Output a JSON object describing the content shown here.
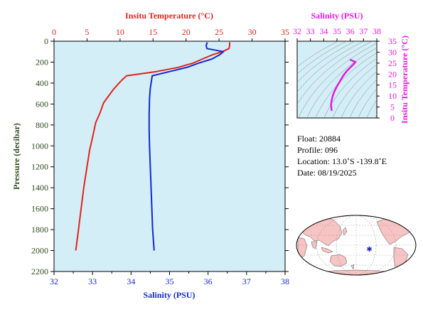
{
  "colors": {
    "plot_bg": "#d3eef6",
    "temperature": "#e3231e",
    "salinity": "#1428d2",
    "ts_curve": "#e419e4",
    "pressure_axis": "#2e4a1c",
    "land": "#f7c3c3",
    "ocean": "#ffffff",
    "float_marker": "#1a28c8"
  },
  "chart_data": [
    {
      "type": "line",
      "title": "",
      "top_axis": {
        "label": "Insitu Temperature (°C)",
        "range": [
          0,
          35
        ],
        "ticks": [
          "0",
          "5",
          "10",
          "15",
          "20",
          "25",
          "30",
          "35"
        ]
      },
      "bottom_axis": {
        "label": "Salinity (PSU)",
        "range": [
          32,
          38
        ],
        "ticks": [
          "32",
          "33",
          "34",
          "35",
          "36",
          "37",
          "38"
        ]
      },
      "left_axis": {
        "label": "Pressure (decibar)",
        "range": [
          0,
          2200
        ],
        "inverted": true,
        "ticks": [
          "0",
          "200",
          "400",
          "600",
          "800",
          "1000",
          "1200",
          "1400",
          "1600",
          "1800",
          "2000",
          "2200"
        ]
      },
      "grid": false,
      "series": [
        {
          "name": "",
          "quantity": "temperature",
          "axis": "top",
          "points": [
            [
              26.6,
              10
            ],
            [
              26.6,
              40
            ],
            [
              26.5,
              70
            ],
            [
              25.5,
              100
            ],
            [
              24.0,
              130
            ],
            [
              22.5,
              170
            ],
            [
              21.0,
              210
            ],
            [
              18.8,
              250
            ],
            [
              15.5,
              290
            ],
            [
              11.0,
              330
            ],
            [
              10.3,
              370
            ],
            [
              9.7,
              410
            ],
            [
              9.0,
              460
            ],
            [
              8.3,
              520
            ],
            [
              7.5,
              590
            ],
            [
              7.0,
              680
            ],
            [
              6.3,
              780
            ],
            [
              5.9,
              900
            ],
            [
              5.4,
              1040
            ],
            [
              5.0,
              1200
            ],
            [
              4.5,
              1400
            ],
            [
              4.1,
              1600
            ],
            [
              3.7,
              1800
            ],
            [
              3.3,
              2000
            ]
          ]
        },
        {
          "name": "",
          "quantity": "salinity",
          "axis": "bottom",
          "points": [
            [
              35.98,
              10
            ],
            [
              35.95,
              40
            ],
            [
              35.97,
              70
            ],
            [
              36.4,
              100
            ],
            [
              36.3,
              130
            ],
            [
              36.1,
              170
            ],
            [
              35.75,
              210
            ],
            [
              35.45,
              250
            ],
            [
              35.0,
              290
            ],
            [
              34.55,
              330
            ],
            [
              34.53,
              380
            ],
            [
              34.5,
              450
            ],
            [
              34.48,
              550
            ],
            [
              34.47,
              700
            ],
            [
              34.47,
              850
            ],
            [
              34.48,
              1000
            ],
            [
              34.5,
              1200
            ],
            [
              34.52,
              1400
            ],
            [
              34.54,
              1600
            ],
            [
              34.56,
              1800
            ],
            [
              34.6,
              2000
            ]
          ]
        }
      ]
    },
    {
      "type": "line",
      "title": "",
      "top_axis": {
        "label": "Salinity (PSU)",
        "range": [
          32,
          38
        ],
        "ticks": [
          "32",
          "33",
          "34",
          "35",
          "36",
          "37",
          "38"
        ]
      },
      "right_axis": {
        "label": "Insitu Temperature (°C)",
        "range": [
          0,
          35
        ],
        "ticks": [
          "0",
          "5",
          "10",
          "15",
          "20",
          "25",
          "30",
          "35"
        ]
      },
      "density_contours": true,
      "series": [
        {
          "name": "",
          "quantity": "T-S",
          "points": [
            [
              34.6,
              3.3
            ],
            [
              34.58,
              4.5
            ],
            [
              34.55,
              6.0
            ],
            [
              34.6,
              8.0
            ],
            [
              34.68,
              10.0
            ],
            [
              34.8,
              12.0
            ],
            [
              35.0,
              14.5
            ],
            [
              35.25,
              17.0
            ],
            [
              35.5,
              19.5
            ],
            [
              35.75,
              21.5
            ],
            [
              36.0,
              23.0
            ],
            [
              36.25,
              24.5
            ],
            [
              36.4,
              25.5
            ],
            [
              36.2,
              26.0
            ],
            [
              35.98,
              26.6
            ]
          ]
        }
      ]
    }
  ],
  "float_info": {
    "float_line": "Float:  20884",
    "profile_line": "Profile:  096",
    "location_line": "Location:  13.0˚S  -139.8˚E",
    "date_line": "Date:  08/19/2025"
  },
  "map": {
    "marker_lat": -13.0,
    "marker_lon": -139.8
  }
}
